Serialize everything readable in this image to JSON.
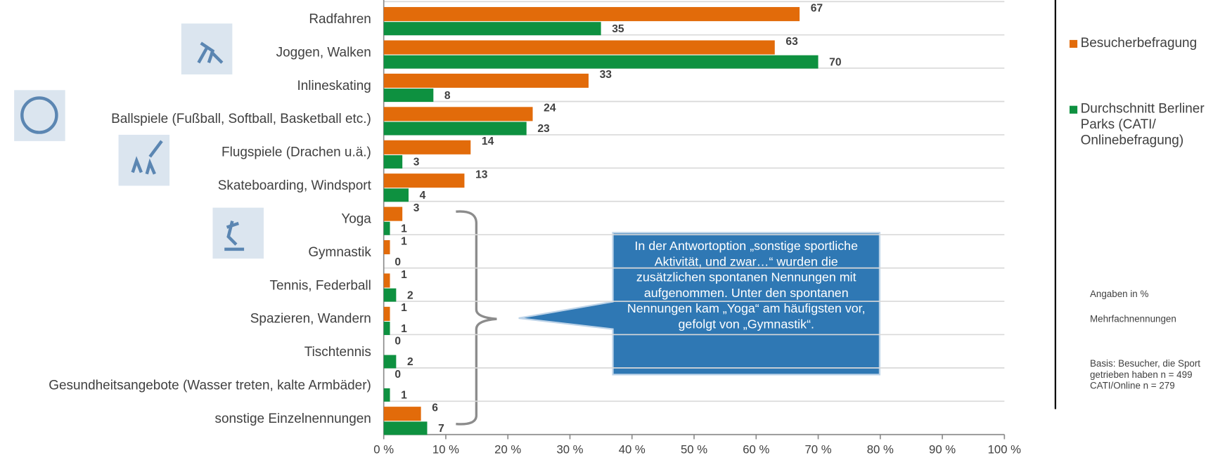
{
  "chart_data": {
    "type": "bar",
    "orientation": "horizontal",
    "categories": [
      "Radfahren",
      "Joggen, Walken",
      "Inlineskating",
      "Ballspiele (Fußball, Softball, Basketball etc.)",
      "Flugspiele (Drachen u.ä.)",
      "Skateboarding, Windsport",
      "Yoga",
      "Gymnastik",
      "Tennis, Federball",
      "Spazieren, Wandern",
      "Tischtennis",
      "Gesundheitsangebote (Wasser treten, kalte Armbäder)",
      "sonstige Einzelnennungen"
    ],
    "series": [
      {
        "name": "Besucherbefragung",
        "color": "#e26b0a",
        "values": [
          67,
          63,
          33,
          24,
          14,
          13,
          3,
          1,
          1,
          1,
          0,
          0,
          6
        ]
      },
      {
        "name": "Durchschnitt Berliner Parks (CATI/ Onlinebefragung)",
        "color": "#0e9140",
        "values": [
          35,
          70,
          8,
          23,
          3,
          4,
          1,
          0,
          2,
          1,
          2,
          1,
          7
        ]
      }
    ],
    "xlim": [
      0,
      100
    ],
    "xticks": [
      {
        "value": 0,
        "label": "0 %"
      },
      {
        "value": 10,
        "label": "10 %"
      },
      {
        "value": 20,
        "label": "20 %"
      },
      {
        "value": 30,
        "label": "30 %"
      },
      {
        "value": 40,
        "label": "40 %"
      },
      {
        "value": 50,
        "label": "50 %"
      },
      {
        "value": 60,
        "label": "60 %"
      },
      {
        "value": 70,
        "label": "70 %"
      },
      {
        "value": 80,
        "label": "80 %"
      },
      {
        "value": 90,
        "label": "90 %"
      },
      {
        "value": 100,
        "label": "100 %"
      }
    ],
    "grid": true,
    "legend": "right",
    "annotation": "In der Antwortoption „sonstige sportliche Aktivität, und zwar…“ wurden die zusätzlichen spontanen Nennungen mit aufgenommen. Unter den spontanen Nennungen kam „Yoga“ am häufigsten vor, gefolgt von „Gymnastik“.",
    "notes": [
      "Angaben in %",
      "Mehrfachnennungen",
      "Basis: Besucher, die Sport getrieben haben n = 499 CATI/Online n = 279"
    ]
  }
}
